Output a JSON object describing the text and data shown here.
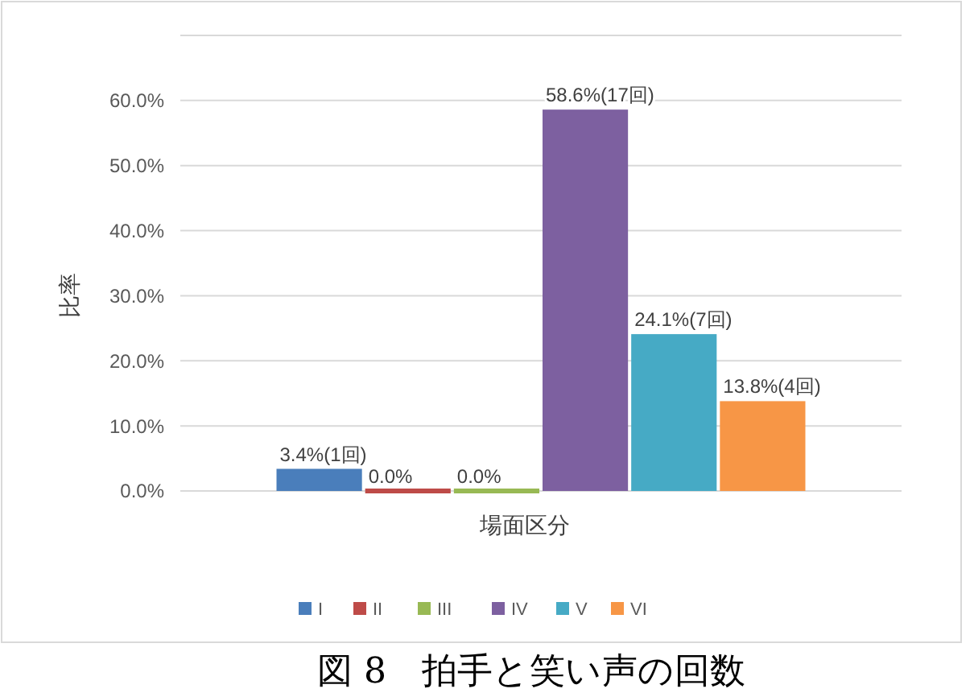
{
  "chart_data": {
    "type": "bar",
    "title": "図 8　拍手と笑い声の回数",
    "xlabel": "場面区分",
    "ylabel": "比率",
    "categories": [
      null
    ],
    "series": [
      {
        "name": "I",
        "color": "#4a7ebb",
        "values": [
          3.4
        ],
        "value_labels": [
          "3.4%(1回)"
        ]
      },
      {
        "name": "II",
        "color": "#be4b48",
        "values": [
          0
        ],
        "value_labels": [
          "0.0%"
        ]
      },
      {
        "name": "III",
        "color": "#98b954",
        "values": [
          0
        ],
        "value_labels": [
          "0.0%"
        ]
      },
      {
        "name": "IV",
        "color": "#7d60a0",
        "values": [
          58.6
        ],
        "value_labels": [
          "58.6%(17回)"
        ]
      },
      {
        "name": "V",
        "color": "#46aac5",
        "values": [
          24.1
        ],
        "value_labels": [
          "24.1%(7回)"
        ]
      },
      {
        "name": "VI",
        "color": "#f79646",
        "values": [
          13.8
        ],
        "value_labels": [
          "13.8%(4回)"
        ]
      }
    ],
    "ylim": [
      0,
      70
    ],
    "yticks": [
      {
        "value": 0,
        "label": "0.0%"
      },
      {
        "value": 10,
        "label": "10.0%"
      },
      {
        "value": 20,
        "label": "20.0%"
      },
      {
        "value": 30,
        "label": "30.0%"
      },
      {
        "value": 40,
        "label": "40.0%"
      },
      {
        "value": 50,
        "label": "50.0%"
      },
      {
        "value": 60,
        "label": "60.0%"
      },
      {
        "value": 70,
        "label": null
      }
    ],
    "grid": "y",
    "legend": "bottom"
  }
}
